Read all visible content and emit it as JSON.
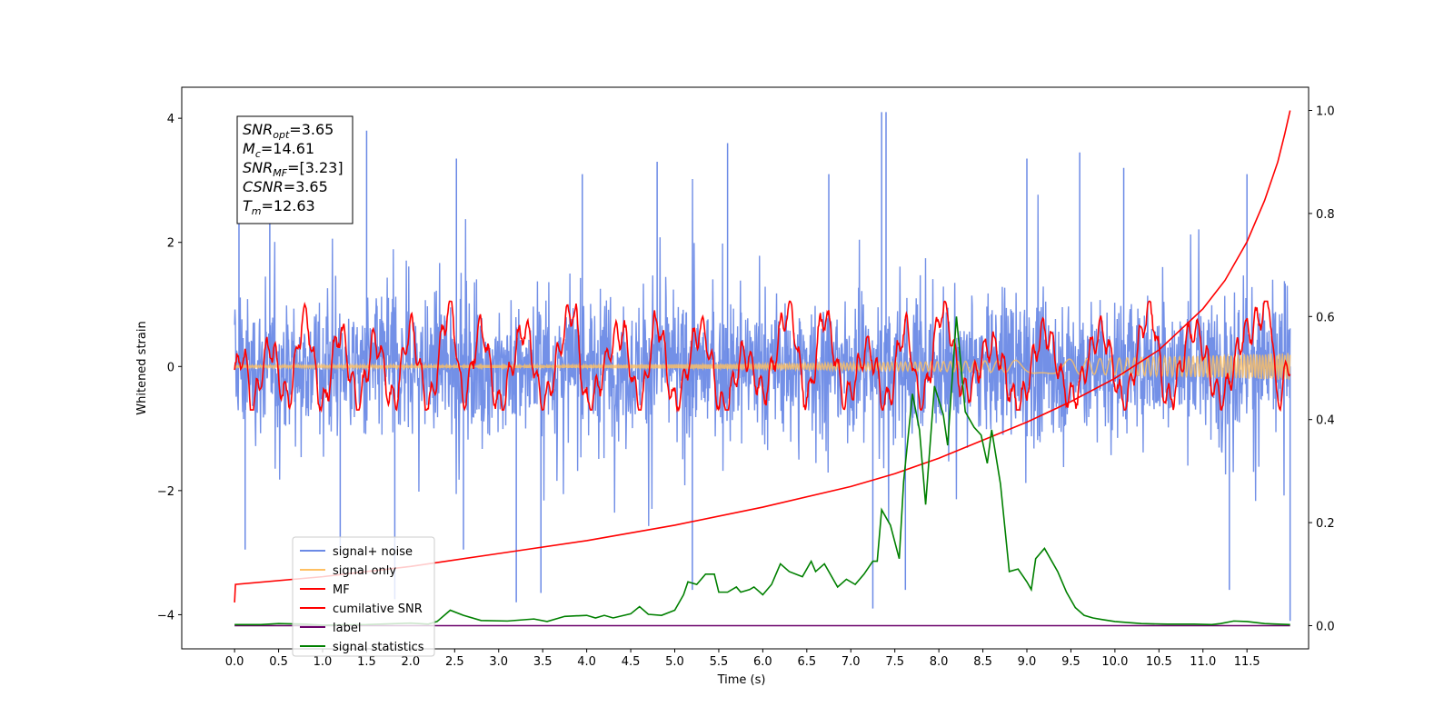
{
  "chart_data": {
    "type": "line",
    "title": "",
    "xlabel": "Time (s)",
    "ylabel": "Whitened strain",
    "y2label": "",
    "xlim": [
      -0.6,
      12.2
    ],
    "ylim": [
      -4.55,
      4.5
    ],
    "y2lim": [
      -0.045,
      1.045
    ],
    "xticks": [
      0.0,
      0.5,
      1.0,
      1.5,
      2.0,
      2.5,
      3.0,
      3.5,
      4.0,
      4.5,
      5.0,
      5.5,
      6.0,
      6.5,
      7.0,
      7.5,
      8.0,
      8.5,
      9.0,
      9.5,
      10.0,
      10.5,
      11.0,
      11.5
    ],
    "xtick_labels": [
      "0.0",
      "0.5",
      "1.0",
      "1.5",
      "2.0",
      "2.5",
      "3.0",
      "3.5",
      "4.0",
      "4.5",
      "5.0",
      "5.5",
      "6.0",
      "6.5",
      "7.0",
      "7.5",
      "8.0",
      "8.5",
      "9.0",
      "9.5",
      "10.0",
      "10.5",
      "11.0",
      "11.5"
    ],
    "yticks": [
      -4,
      -2,
      0,
      2,
      4
    ],
    "ytick_labels": [
      "−4",
      "−2",
      "0",
      "2",
      "4"
    ],
    "y2ticks": [
      0.0,
      0.2,
      0.4,
      0.6,
      0.8,
      1.0
    ],
    "y2tick_labels": [
      "0.0",
      "0.2",
      "0.4",
      "0.6",
      "0.8",
      "1.0"
    ],
    "grid": false,
    "legend_position": "lower-left",
    "series": [
      {
        "name": "signal+ noise",
        "color": "#6b8ae6",
        "axis": "left",
        "kind": "noise",
        "x_range": [
          0.0,
          11.99
        ],
        "spread": 1.15,
        "sample_peaks": [
          {
            "x": 0.05,
            "y": 2.3
          },
          {
            "x": 0.12,
            "y": -2.95
          },
          {
            "x": 0.4,
            "y": 2.55
          },
          {
            "x": 1.2,
            "y": -3.0
          },
          {
            "x": 1.5,
            "y": 3.8
          },
          {
            "x": 1.82,
            "y": -3.75
          },
          {
            "x": 2.52,
            "y": 3.35
          },
          {
            "x": 2.6,
            "y": -2.95
          },
          {
            "x": 3.2,
            "y": -3.8
          },
          {
            "x": 3.48,
            "y": -3.65
          },
          {
            "x": 3.95,
            "y": 3.1
          },
          {
            "x": 4.8,
            "y": 3.3
          },
          {
            "x": 5.2,
            "y": -3.6
          },
          {
            "x": 5.6,
            "y": 3.6
          },
          {
            "x": 6.75,
            "y": 3.1
          },
          {
            "x": 7.25,
            "y": -3.9
          },
          {
            "x": 7.35,
            "y": 4.1
          },
          {
            "x": 7.4,
            "y": 4.1
          },
          {
            "x": 7.62,
            "y": -3.6
          },
          {
            "x": 9.0,
            "y": 3.35
          },
          {
            "x": 9.6,
            "y": 3.45
          },
          {
            "x": 10.1,
            "y": 3.2
          },
          {
            "x": 11.3,
            "y": -3.6
          },
          {
            "x": 11.5,
            "y": 3.1
          },
          {
            "x": 11.99,
            "y": -4.1
          }
        ]
      },
      {
        "name": "signal only",
        "color": "#ffc062",
        "axis": "left",
        "kind": "chirp",
        "x_range": [
          0.0,
          11.99
        ],
        "amplitude_start": 0.02,
        "amplitude_end": 0.22
      },
      {
        "name": "MF",
        "color": "#ff0000",
        "axis": "left",
        "kind": "oscillation",
        "x_range": [
          0.0,
          11.99
        ],
        "values": [
          [
            0.0,
            -0.1
          ],
          [
            0.1,
            0.2
          ],
          [
            0.2,
            -0.6
          ],
          [
            0.4,
            0.3
          ],
          [
            0.6,
            -0.5
          ],
          [
            0.8,
            0.8
          ],
          [
            1.0,
            -0.6
          ],
          [
            1.2,
            0.55
          ],
          [
            1.4,
            -0.55
          ],
          [
            1.6,
            0.4
          ],
          [
            1.8,
            -0.55
          ],
          [
            2.0,
            0.6
          ],
          [
            2.2,
            -0.6
          ],
          [
            2.45,
            0.95
          ],
          [
            2.6,
            -0.5
          ],
          [
            2.8,
            0.6
          ],
          [
            3.0,
            -0.6
          ],
          [
            3.3,
            0.6
          ],
          [
            3.5,
            -0.55
          ],
          [
            3.85,
            0.9
          ],
          [
            4.0,
            -0.6
          ],
          [
            4.4,
            0.55
          ],
          [
            4.6,
            -0.6
          ],
          [
            4.8,
            0.7
          ],
          [
            5.0,
            -0.55
          ],
          [
            5.3,
            0.6
          ],
          [
            5.55,
            -0.65
          ],
          [
            5.8,
            0.2
          ],
          [
            6.0,
            -0.4
          ],
          [
            6.3,
            0.9
          ],
          [
            6.5,
            -0.5
          ],
          [
            6.7,
            0.8
          ],
          [
            6.95,
            -0.5
          ],
          [
            7.2,
            0.3
          ],
          [
            7.4,
            -0.6
          ],
          [
            7.62,
            0.6
          ],
          [
            7.8,
            -0.55
          ],
          [
            8.05,
            0.9
          ],
          [
            8.3,
            -0.4
          ],
          [
            8.6,
            0.35
          ],
          [
            8.9,
            -0.6
          ],
          [
            9.2,
            0.55
          ],
          [
            9.5,
            -0.5
          ],
          [
            9.85,
            0.55
          ],
          [
            10.1,
            -0.55
          ],
          [
            10.4,
            0.9
          ],
          [
            10.6,
            -0.55
          ],
          [
            10.9,
            0.6
          ],
          [
            11.2,
            -0.5
          ],
          [
            11.5,
            0.55
          ],
          [
            11.75,
            1.0
          ],
          [
            11.85,
            -0.55
          ],
          [
            11.99,
            0.05
          ]
        ]
      },
      {
        "name": "cumilative SNR",
        "color": "#ff0000",
        "axis": "right",
        "kind": "line",
        "values": [
          [
            0.0,
            0.045
          ],
          [
            0.01,
            0.08
          ],
          [
            1.0,
            0.095
          ],
          [
            2.0,
            0.115
          ],
          [
            3.0,
            0.14
          ],
          [
            4.0,
            0.165
          ],
          [
            5.0,
            0.195
          ],
          [
            6.0,
            0.23
          ],
          [
            7.0,
            0.27
          ],
          [
            7.5,
            0.295
          ],
          [
            8.0,
            0.325
          ],
          [
            8.5,
            0.36
          ],
          [
            9.0,
            0.395
          ],
          [
            9.5,
            0.435
          ],
          [
            10.0,
            0.48
          ],
          [
            10.5,
            0.535
          ],
          [
            11.0,
            0.615
          ],
          [
            11.25,
            0.67
          ],
          [
            11.5,
            0.745
          ],
          [
            11.7,
            0.825
          ],
          [
            11.85,
            0.9
          ],
          [
            11.93,
            0.955
          ],
          [
            11.99,
            1.0
          ]
        ]
      },
      {
        "name": "label",
        "color": "#6a006a",
        "axis": "right",
        "kind": "line",
        "values": [
          [
            0.0,
            0.0
          ],
          [
            11.99,
            0.0
          ]
        ]
      },
      {
        "name": "signal statistics",
        "color": "#008000",
        "axis": "right",
        "kind": "line",
        "values": [
          [
            0.0,
            0.002
          ],
          [
            0.3,
            0.002
          ],
          [
            0.5,
            0.004
          ],
          [
            0.8,
            0.003
          ],
          [
            1.0,
            0.001
          ],
          [
            1.5,
            0.002
          ],
          [
            2.0,
            0.005
          ],
          [
            2.2,
            0.003
          ],
          [
            2.3,
            0.008
          ],
          [
            2.45,
            0.03
          ],
          [
            2.6,
            0.02
          ],
          [
            2.8,
            0.01
          ],
          [
            3.1,
            0.009
          ],
          [
            3.4,
            0.013
          ],
          [
            3.55,
            0.008
          ],
          [
            3.75,
            0.018
          ],
          [
            4.0,
            0.02
          ],
          [
            4.1,
            0.015
          ],
          [
            4.2,
            0.02
          ],
          [
            4.3,
            0.015
          ],
          [
            4.5,
            0.023
          ],
          [
            4.6,
            0.037
          ],
          [
            4.7,
            0.022
          ],
          [
            4.85,
            0.02
          ],
          [
            5.0,
            0.03
          ],
          [
            5.1,
            0.06
          ],
          [
            5.15,
            0.085
          ],
          [
            5.25,
            0.08
          ],
          [
            5.35,
            0.1
          ],
          [
            5.45,
            0.1
          ],
          [
            5.5,
            0.065
          ],
          [
            5.6,
            0.065
          ],
          [
            5.7,
            0.075
          ],
          [
            5.75,
            0.065
          ],
          [
            5.85,
            0.07
          ],
          [
            5.9,
            0.075
          ],
          [
            6.0,
            0.06
          ],
          [
            6.1,
            0.08
          ],
          [
            6.2,
            0.12
          ],
          [
            6.3,
            0.105
          ],
          [
            6.45,
            0.095
          ],
          [
            6.55,
            0.125
          ],
          [
            6.6,
            0.105
          ],
          [
            6.7,
            0.12
          ],
          [
            6.85,
            0.075
          ],
          [
            6.95,
            0.09
          ],
          [
            7.05,
            0.08
          ],
          [
            7.15,
            0.1
          ],
          [
            7.25,
            0.125
          ],
          [
            7.3,
            0.125
          ],
          [
            7.35,
            0.225
          ],
          [
            7.45,
            0.195
          ],
          [
            7.55,
            0.13
          ],
          [
            7.6,
            0.28
          ],
          [
            7.7,
            0.45
          ],
          [
            7.78,
            0.38
          ],
          [
            7.85,
            0.235
          ],
          [
            7.95,
            0.465
          ],
          [
            8.05,
            0.41
          ],
          [
            8.1,
            0.35
          ],
          [
            8.2,
            0.6
          ],
          [
            8.3,
            0.415
          ],
          [
            8.4,
            0.385
          ],
          [
            8.48,
            0.37
          ],
          [
            8.55,
            0.315
          ],
          [
            8.6,
            0.38
          ],
          [
            8.7,
            0.275
          ],
          [
            8.8,
            0.105
          ],
          [
            8.9,
            0.11
          ],
          [
            9.0,
            0.085
          ],
          [
            9.05,
            0.07
          ],
          [
            9.1,
            0.13
          ],
          [
            9.2,
            0.15
          ],
          [
            9.35,
            0.105
          ],
          [
            9.45,
            0.065
          ],
          [
            9.55,
            0.035
          ],
          [
            9.65,
            0.02
          ],
          [
            9.75,
            0.015
          ],
          [
            9.85,
            0.012
          ],
          [
            10.0,
            0.008
          ],
          [
            10.3,
            0.004
          ],
          [
            10.6,
            0.003
          ],
          [
            10.9,
            0.003
          ],
          [
            11.1,
            0.002
          ],
          [
            11.2,
            0.004
          ],
          [
            11.35,
            0.009
          ],
          [
            11.5,
            0.008
          ],
          [
            11.6,
            0.006
          ],
          [
            11.7,
            0.004
          ],
          [
            11.99,
            0.002
          ]
        ]
      }
    ]
  },
  "info_box": {
    "lines": [
      {
        "main": "SNR",
        "sub": "opt",
        "rest": "=3.65"
      },
      {
        "main": "M",
        "sub": "c",
        "rest": "=14.61"
      },
      {
        "main": "SNR",
        "sub": "MF",
        "rest": "=[3.23]"
      },
      {
        "main": "CSNR",
        "sub": "",
        "rest": "=3.65"
      },
      {
        "main": "T",
        "sub": "m",
        "rest": "=12.63"
      }
    ]
  }
}
